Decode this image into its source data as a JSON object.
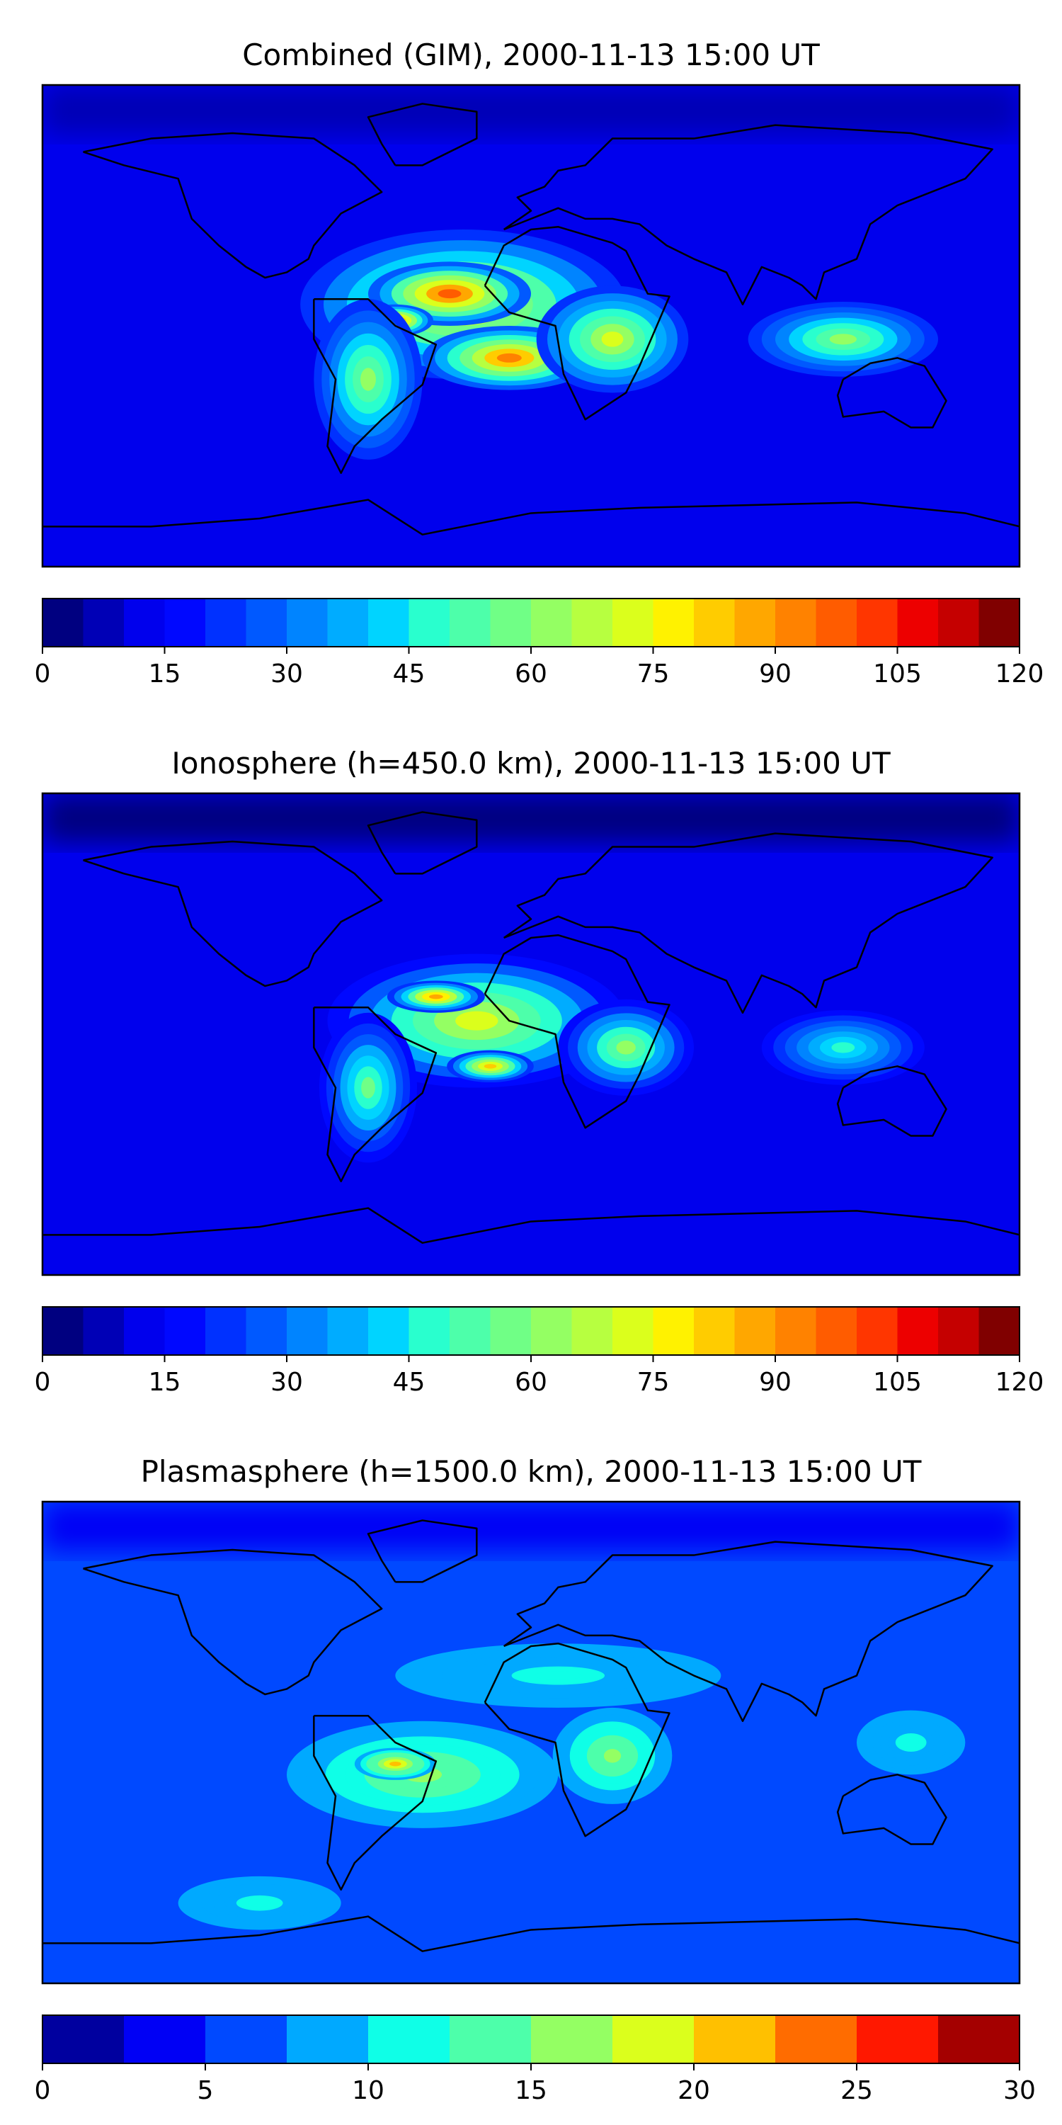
{
  "chart_data": [
    {
      "type": "heatmap",
      "title": "Combined (GIM), 2000-11-13 15:00 UT",
      "colorbar": {
        "ticks": [
          "0",
          "15",
          "30",
          "45",
          "60",
          "75",
          "90",
          "105",
          "120"
        ],
        "range": [
          0,
          120
        ],
        "levels": 24,
        "colors": [
          "#000080",
          "#0000b6",
          "#0000ed",
          "#0008ff",
          "#0031ff",
          "#0059ff",
          "#0084ff",
          "#00acff",
          "#00d4ff",
          "#29ffce",
          "#4dffaa",
          "#70ff86",
          "#94ff63",
          "#b7ff40",
          "#dbff1c",
          "#fff200",
          "#ffcc00",
          "#ffa700",
          "#ff8200",
          "#ff5c00",
          "#ff3600",
          "#ed0000",
          "#c50000",
          "#800000"
        ]
      },
      "blobs": [
        {
          "lon": -25,
          "lat": 8,
          "value": 78,
          "rx": 60,
          "ry": 28
        },
        {
          "lon": -30,
          "lat": 12,
          "value": 98,
          "rx": 30,
          "ry": 12
        },
        {
          "lon": -8,
          "lat": -12,
          "value": 92,
          "rx": 32,
          "ry": 12
        },
        {
          "lon": -50,
          "lat": 2,
          "value": 95,
          "rx": 14,
          "ry": 6
        },
        {
          "lon": 30,
          "lat": -5,
          "value": 70,
          "rx": 28,
          "ry": 20
        },
        {
          "lon": 115,
          "lat": -5,
          "value": 60,
          "rx": 35,
          "ry": 14
        },
        {
          "lon": -60,
          "lat": -20,
          "value": 60,
          "rx": 20,
          "ry": 30
        }
      ],
      "base_value": 14
    },
    {
      "type": "heatmap",
      "title": "Ionosphere  (h=450.0 km), 2000-11-13 15:00 UT",
      "colorbar": {
        "ticks": [
          "0",
          "15",
          "30",
          "45",
          "60",
          "75",
          "90",
          "105",
          "120"
        ],
        "range": [
          0,
          120
        ],
        "levels": 24,
        "colors": [
          "#000080",
          "#0000b6",
          "#0000ed",
          "#0008ff",
          "#0031ff",
          "#0059ff",
          "#0084ff",
          "#00acff",
          "#00d4ff",
          "#29ffce",
          "#4dffaa",
          "#70ff86",
          "#94ff63",
          "#b7ff40",
          "#dbff1c",
          "#fff200",
          "#ffcc00",
          "#ffa700",
          "#ff8200",
          "#ff5c00",
          "#ff3600",
          "#ed0000",
          "#c50000",
          "#800000"
        ]
      },
      "blobs": [
        {
          "lon": -20,
          "lat": 5,
          "value": 72,
          "rx": 55,
          "ry": 25
        },
        {
          "lon": -35,
          "lat": 14,
          "value": 88,
          "rx": 18,
          "ry": 6
        },
        {
          "lon": -15,
          "lat": -12,
          "value": 84,
          "rx": 16,
          "ry": 6
        },
        {
          "lon": 35,
          "lat": -5,
          "value": 60,
          "rx": 25,
          "ry": 18
        },
        {
          "lon": 115,
          "lat": -5,
          "value": 48,
          "rx": 30,
          "ry": 14
        },
        {
          "lon": -60,
          "lat": -20,
          "value": 55,
          "rx": 18,
          "ry": 28
        }
      ],
      "base_value": 10
    },
    {
      "type": "heatmap",
      "title": "Plasmasphere (h=1500.0 km), 2000-11-13 15:00 UT",
      "colorbar": {
        "ticks": [
          "0",
          "5",
          "10",
          "15",
          "20",
          "25",
          "30"
        ],
        "range": [
          0,
          30
        ],
        "levels": 12,
        "colors": [
          "#00009f",
          "#0000f5",
          "#0049ff",
          "#00a9ff",
          "#0fffe7",
          "#4dffaa",
          "#94ff63",
          "#dbff1c",
          "#ffc000",
          "#ff6c00",
          "#ff1800",
          "#a40000"
        ]
      },
      "blobs": [
        {
          "lon": -40,
          "lat": -12,
          "value": 16,
          "rx": 50,
          "ry": 20
        },
        {
          "lon": -50,
          "lat": -8,
          "value": 20,
          "rx": 15,
          "ry": 6
        },
        {
          "lon": 30,
          "lat": -5,
          "value": 16,
          "rx": 22,
          "ry": 18
        },
        {
          "lon": 10,
          "lat": 25,
          "value": 11,
          "rx": 60,
          "ry": 12
        },
        {
          "lon": 140,
          "lat": 0,
          "value": 11,
          "rx": 20,
          "ry": 12
        },
        {
          "lon": -100,
          "lat": -60,
          "value": 11,
          "rx": 30,
          "ry": 10
        }
      ],
      "base_value": 7
    }
  ]
}
